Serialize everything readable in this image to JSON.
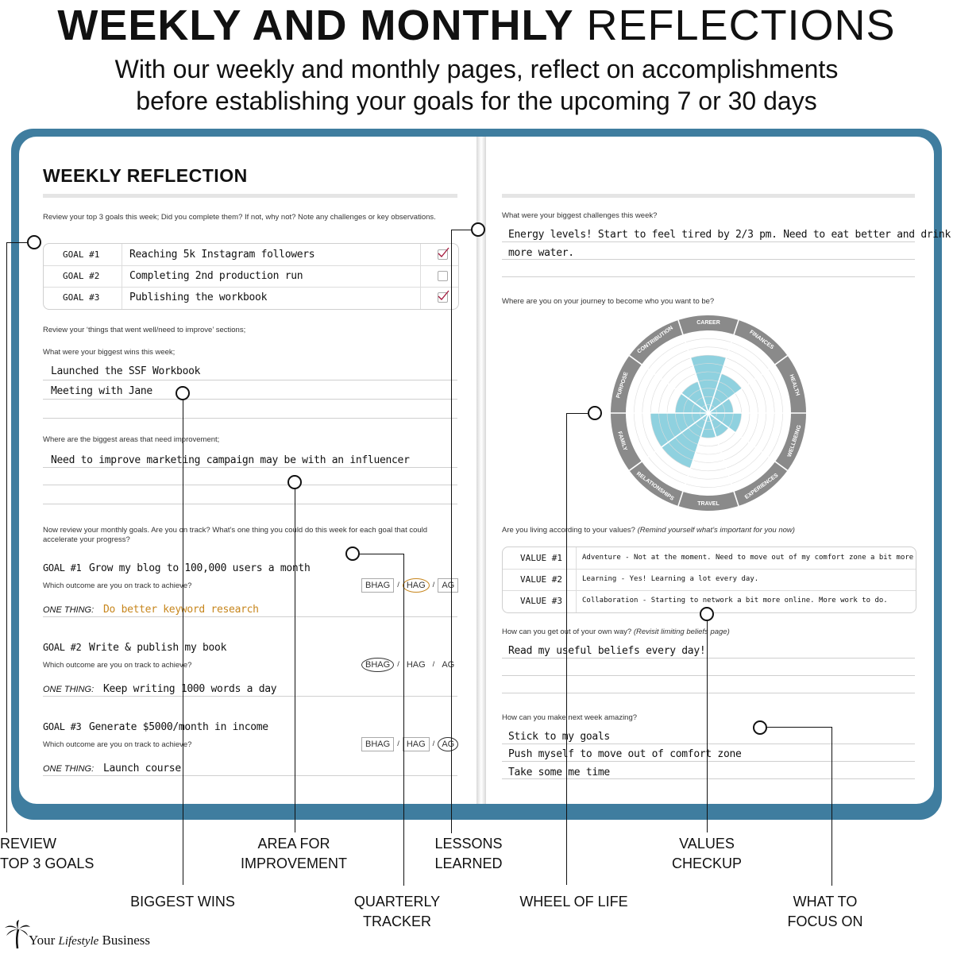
{
  "header": {
    "title_bold": "WEEKLY AND MONTHLY",
    "title_light": "REFLECTIONS",
    "subtitle_line1": "With our weekly and monthly pages, reflect on accomplishments",
    "subtitle_line2": "before establishing your goals for the upcoming 7 or 30 days"
  },
  "left_page": {
    "title": "WEEKLY REFLECTION",
    "q1": "Review your top 3 goals this week; Did you complete them? If not, why not? Note any challenges or key observations.",
    "goals": [
      {
        "label": "GOAL #1",
        "text": "Reaching 5k Instagram followers",
        "checked": true
      },
      {
        "label": "GOAL #2",
        "text": "Completing 2nd production run",
        "checked": false
      },
      {
        "label": "GOAL #3",
        "text": "Publishing the workbook",
        "checked": true
      }
    ],
    "q2": "Review your ‘things that went well/need to improve’ sections;",
    "q3": "What were your biggest wins this week;",
    "wins": [
      "Launched the SSF Workbook",
      "Meeting with Jane"
    ],
    "q4": "Where are the biggest areas that need improvement;",
    "improve": "Need to improve marketing campaign may be with an influencer",
    "q5": "Now review your monthly goals. Are you on track? What’s one thing you could do this week for each goal that could accelerate your progress?",
    "outcome_q": "Which outcome are you on track to achieve?",
    "one_thing_label": "ONE THING:",
    "monthly": [
      {
        "label": "GOAL #1",
        "text": "Grow my blog to 100,000 users a month",
        "one_thing": "Do better keyword research",
        "selected": "HAG"
      },
      {
        "label": "GOAL #2",
        "text": "Write & publish my book",
        "one_thing": "Keep writing 1000 words a day",
        "selected": "BHAG"
      },
      {
        "label": "GOAL #3",
        "text": "Generate $5000/month in income",
        "one_thing": "Launch course",
        "selected": "AG"
      }
    ],
    "options": [
      "BHAG",
      "HAG",
      "AG"
    ],
    "slash": "/"
  },
  "right_page": {
    "q1": "What were your biggest challenges this week?",
    "challenges": [
      "Energy levels! Start to feel tired by 2/3 pm. Need to eat better and drink",
      "more water."
    ],
    "q2": "Where are you on your journey to become who you want to be?",
    "wheel_labels": [
      "CAREER",
      "FINANCES",
      "HEALTH",
      "WELLBEING",
      "EXPERIENCES",
      "TRAVEL",
      "RELATIONSHIPS",
      "FAMILY",
      "PURPOSE",
      "CONTRIBUTION"
    ],
    "wheel_scores": [
      7,
      5,
      3,
      4,
      3,
      3,
      7,
      7,
      4,
      4
    ],
    "wheel_fill": "#8fd1df",
    "q3": "Are you living according to your values?",
    "q3_note": "(Remind yourself what’s important for you now)",
    "values": [
      {
        "label": "VALUE #1",
        "text": "Adventure - Not at the moment. Need to move out of my comfort zone a bit more"
      },
      {
        "label": "VALUE #2",
        "text": "Learning - Yes! Learning a lot every day."
      },
      {
        "label": "VALUE #3",
        "text": "Collaboration - Starting to network a bit more online. More work to do."
      }
    ],
    "q4": "How can you get out of your own way?",
    "q4_note": "(Revisit limiting beliefs page)",
    "own_way": "Read my useful beliefs every day!",
    "q5": "How can you make next week amazing?",
    "amazing": [
      "Stick to my goals",
      "Push myself to move out of comfort zone",
      "Take some me time"
    ]
  },
  "callouts": {
    "review_1": "REVIEW",
    "review_2": "TOP 3 GOALS",
    "area_1": "AREA FOR",
    "area_2": "IMPROVEMENT",
    "lessons_1": "LESSONS",
    "lessons_2": "LEARNED",
    "values_1": "VALUES",
    "values_2": "CHECKUP",
    "wins": "BIGGEST WINS",
    "quarterly_1": "QUARTERLY",
    "quarterly_2": "TRACKER",
    "wheel": "WHEEL OF LIFE",
    "focus_1": "WHAT TO",
    "focus_2": "FOCUS ON"
  },
  "brand": {
    "part1": "Your",
    "part2": "Lifestyle",
    "part3": "Business",
    "logo_icon": "palm-tree-icon"
  },
  "colors": {
    "book_cover": "#3f7d9f",
    "handwriting_red": "#a3173a",
    "handwriting_green": "#2b7a3a",
    "handwriting_orange": "#c7861d"
  }
}
